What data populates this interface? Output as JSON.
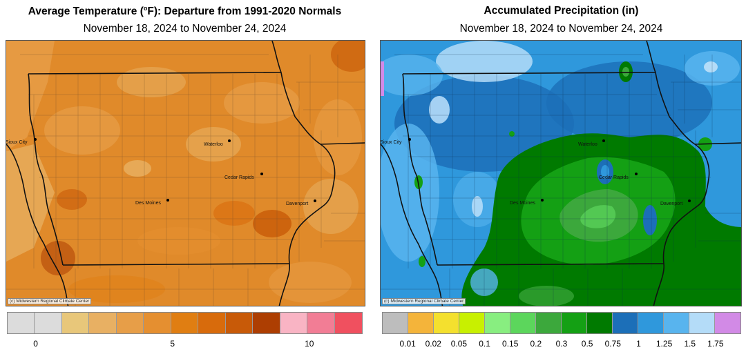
{
  "temperature_map": {
    "title_main": "Average Temperature (",
    "title_sup_degree": "o",
    "title_rest": "F): Departure from 1991-2020 Normals",
    "subtitle": "November 18, 2024 to November 24, 2024",
    "credit": "(c) Midwestern Regional Climate Center",
    "base_color": "#e08a2a",
    "legend_colors": [
      "#dcdcdc",
      "#dcdcdc",
      "#e8c77a",
      "#e8b063",
      "#e79e48",
      "#e58f30",
      "#e07e12",
      "#d86b0c",
      "#c85a08",
      "#ad3e02",
      "#f9b4c4",
      "#f27d95",
      "#f0505f"
    ],
    "legend_ticks": [
      {
        "label": "0",
        "after_swatch": 1
      },
      {
        "label": "5",
        "after_swatch": 6
      },
      {
        "label": "10",
        "after_swatch": 11
      }
    ]
  },
  "precip_map": {
    "title": "Accumulated Precipitation (in)",
    "subtitle": "November 18, 2024 to November 24, 2024",
    "credit": "(c) Midwestern Regional Climate Center",
    "legend_colors": [
      "#bdbdbd",
      "#f4b43a",
      "#f4e02e",
      "#c8f000",
      "#88ee80",
      "#5cd65c",
      "#3ca83c",
      "#14a014",
      "#007a00",
      "#1c6fb8",
      "#2f98dc",
      "#58b4ee",
      "#b4dcf8",
      "#d28ae6"
    ],
    "legend_labels": [
      "0.01",
      "0.02",
      "0.05",
      "0.1",
      "0.15",
      "0.2",
      "0.3",
      "0.5",
      "0.75",
      "1",
      "1.25",
      "1.5",
      "1.75"
    ]
  },
  "cities": [
    {
      "name": "Sioux City",
      "key": "sioux_city"
    },
    {
      "name": "Waterloo",
      "key": "waterloo"
    },
    {
      "name": "Cedar Rapids",
      "key": "cedar_rapids"
    },
    {
      "name": "Des Moines",
      "key": "des_moines"
    },
    {
      "name": "Davenport",
      "key": "davenport"
    }
  ]
}
